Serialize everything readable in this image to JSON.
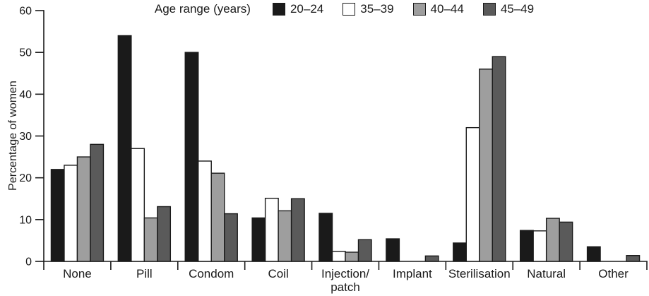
{
  "chart_data": {
    "type": "bar",
    "legend_title": "Age range (years)",
    "title": "",
    "xlabel": "",
    "ylabel": "Percentage of women",
    "ylim": [
      0,
      60
    ],
    "yticks": [
      0,
      10,
      20,
      30,
      40,
      50,
      60
    ],
    "grid": false,
    "legend_position": "top",
    "axis_color": "#1a1a1a",
    "bar_border_color": "#1a1a1a",
    "bar_width": 18.5,
    "categories": [
      "None",
      "Pill",
      "Condom",
      "Coil",
      "Injection/\npatch",
      "Implant",
      "Sterilisation",
      "Natural",
      "Other"
    ],
    "series": [
      {
        "name": "20–24",
        "color": "#1a1a1a",
        "values": [
          22,
          54,
          50,
          10.4,
          11.5,
          5.4,
          4.4,
          7.4,
          3.5
        ]
      },
      {
        "name": "35–39",
        "color": "#ffffff",
        "values": [
          23,
          27,
          24,
          15.1,
          2.4,
          0,
          32,
          7.3,
          0
        ]
      },
      {
        "name": "40–44",
        "color": "#9e9e9e",
        "values": [
          25,
          10.4,
          21.1,
          12.1,
          2.2,
          0,
          46,
          10.3,
          0
        ]
      },
      {
        "name": "45–49",
        "color": "#5a5a5a",
        "values": [
          28,
          13.1,
          11.4,
          15,
          5.2,
          1.3,
          49,
          9.4,
          1.4
        ]
      }
    ]
  }
}
